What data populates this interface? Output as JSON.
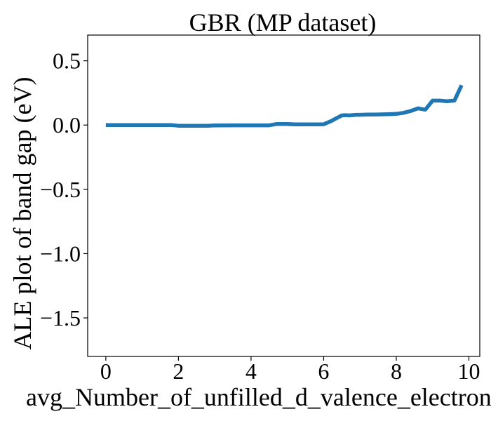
{
  "chart_data": {
    "type": "line",
    "title": "GBR (MP dataset)",
    "xlabel": "avg_Number_of_unfilled_d_valence_electrons",
    "ylabel": "ALE plot of band gap (eV)",
    "xlim": [
      -0.5,
      10.3
    ],
    "ylim": [
      -1.8,
      0.7
    ],
    "xticks": [
      0,
      2,
      4,
      6,
      8,
      10
    ],
    "yticks": [
      0.5,
      0.0,
      -0.5,
      -1.0,
      -1.5
    ],
    "xtick_labels": [
      "0",
      "2",
      "4",
      "6",
      "8",
      "10"
    ],
    "ytick_labels": [
      "0.5",
      "0.0",
      "−0.5",
      "−1.0",
      "−1.5"
    ],
    "grid": false,
    "series": [
      {
        "color": "#1f77b4",
        "x": [
          0,
          0.5,
          1.0,
          1.5,
          1.8,
          2.0,
          2.2,
          2.5,
          2.8,
          3.0,
          3.5,
          4.0,
          4.5,
          4.7,
          5.0,
          5.2,
          5.5,
          5.8,
          6.0,
          6.2,
          6.4,
          6.5,
          6.6,
          6.7,
          6.9,
          7.0,
          7.2,
          7.4,
          7.6,
          7.8,
          8.0,
          8.2,
          8.4,
          8.6,
          8.8,
          9.0,
          9.2,
          9.4,
          9.6,
          9.8
        ],
        "y": [
          0.0,
          0.0,
          0.0,
          0.0,
          0.0,
          -0.005,
          -0.005,
          -0.005,
          -0.005,
          -0.003,
          -0.002,
          -0.002,
          -0.002,
          0.008,
          0.008,
          0.005,
          0.005,
          0.005,
          0.006,
          0.03,
          0.06,
          0.075,
          0.077,
          0.075,
          0.08,
          0.08,
          0.082,
          0.082,
          0.083,
          0.085,
          0.087,
          0.095,
          0.11,
          0.13,
          0.12,
          0.19,
          0.19,
          0.185,
          0.19,
          0.31
        ]
      }
    ]
  }
}
